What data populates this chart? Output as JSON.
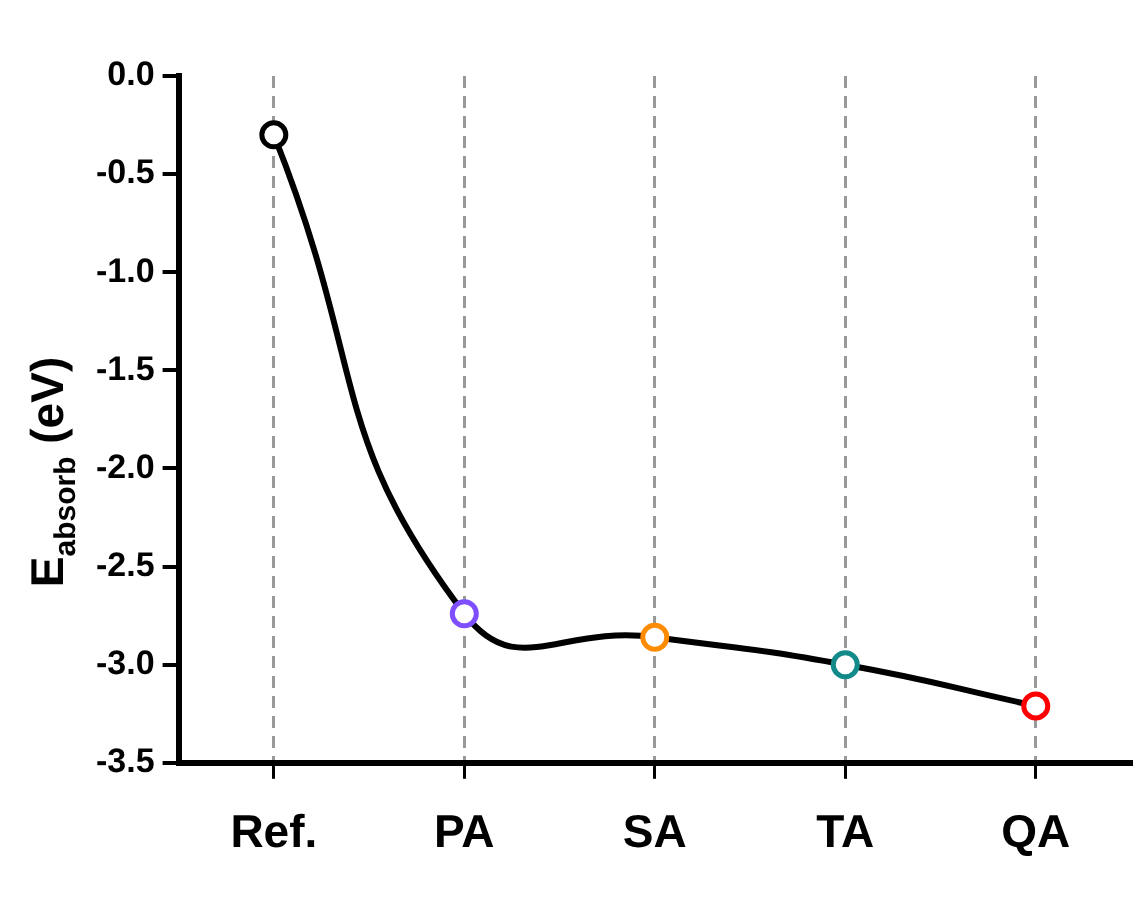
{
  "chart_data": {
    "type": "line",
    "ylabel": "E$_{absorb}$ (eV)",
    "categories": [
      "Ref.",
      "PA",
      "SA",
      "TA",
      "QA"
    ],
    "series": [
      {
        "color": "#000000",
        "colors": [
          "#000000",
          "#7f4fff",
          "#ff8c00",
          "#138a8a",
          "#ff0000"
        ],
        "values": [
          -0.3,
          -2.74,
          -2.86,
          -3.0,
          -3.21
        ]
      }
    ],
    "ylim": [
      -3.5,
      0.0
    ],
    "yticks": [
      {
        "value": 0,
        "label": "0.0"
      },
      {
        "value": -0.5,
        "label": "-0.5"
      },
      {
        "value": -1,
        "label": "-1.0"
      },
      {
        "value": -1.5,
        "label": "-1.5"
      },
      {
        "value": -2,
        "label": "-2.0"
      },
      {
        "value": -2.5,
        "label": "-2.5"
      },
      {
        "value": -3,
        "label": "-3.0"
      },
      {
        "value": -3.5,
        "label": "-3.5"
      }
    ],
    "grid": "x",
    "legend": false,
    "marker": "circle",
    "line_style": "solid"
  }
}
